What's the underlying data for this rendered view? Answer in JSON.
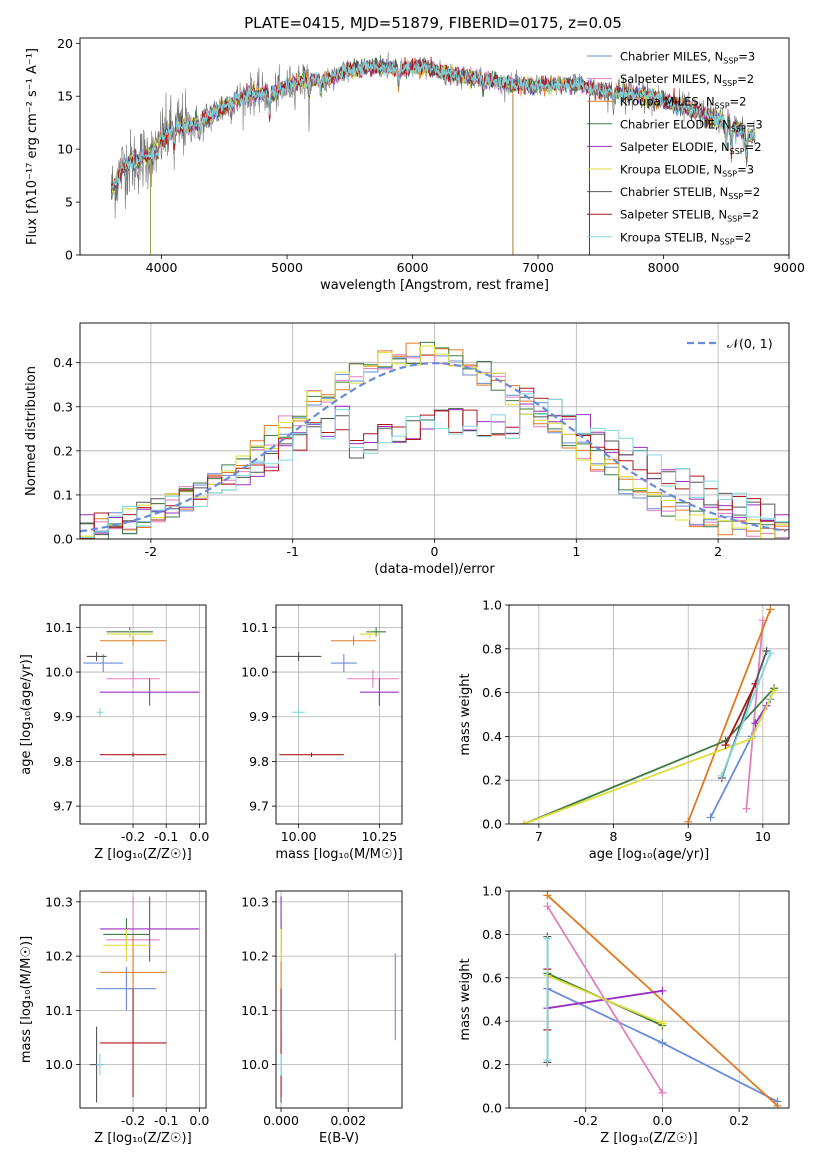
{
  "figure_title": "PLATE=0415, MJD=51879, FIBERID=0175, z=0.05",
  "colors": {
    "Chabrier MILES": "#6a8bd9",
    "Salpeter MILES": "#e27fbf",
    "Kroupa MILES": "#e07a22",
    "Chabrier ELODIE": "#3f7a42",
    "Salpeter ELODIE": "#9b2fc4",
    "Kroupa ELODIE": "#dede3a",
    "Chabrier STELIB": "#555555",
    "Salpeter STELIB": "#b01818",
    "Kroupa STELIB": "#7fd7de"
  },
  "chart_data": [
    {
      "id": "spectrum",
      "type": "line",
      "title": "PLATE=0415, MJD=51879, FIBERID=0175, z=0.05",
      "xlabel": "wavelength [Angstrom, rest frame]",
      "ylabel": "Flux [fλ10⁻¹⁷ erg cm⁻² s⁻¹ A⁻¹]",
      "xlim": [
        3350,
        9000
      ],
      "ylim": [
        0,
        20.5
      ],
      "xticks": [
        4000,
        5000,
        6000,
        7000,
        8000,
        9000
      ],
      "yticks": [
        0,
        5,
        10,
        15,
        20
      ],
      "legend": "top-right",
      "legend_entries": [
        {
          "label": "Chabrier MILES, N",
          "sub": "SSP",
          "tail": "=3",
          "color": "#6a8bd9"
        },
        {
          "label": "Salpeter MILES, N",
          "sub": "SSP",
          "tail": "=2",
          "color": "#e27fbf"
        },
        {
          "label": "Kroupa MILES, N",
          "sub": "SSP",
          "tail": "=2",
          "color": "#e07a22"
        },
        {
          "label": "Chabrier ELODIE, N",
          "sub": "SSP",
          "tail": "=3",
          "color": "#3f7a42"
        },
        {
          "label": "Salpeter ELODIE, N",
          "sub": "SSP",
          "tail": "=2",
          "color": "#9b2fc4"
        },
        {
          "label": "Kroupa ELODIE, N",
          "sub": "SSP",
          "tail": "=3",
          "color": "#dede3a"
        },
        {
          "label": "Chabrier STELIB, N",
          "sub": "SSP",
          "tail": "=2",
          "color": "#555555"
        },
        {
          "label": "Salpeter STELIB, N",
          "sub": "SSP",
          "tail": "=2",
          "color": "#b01818"
        },
        {
          "label": "Kroupa STELIB, N",
          "sub": "SSP",
          "tail": "=2",
          "color": "#7fd7de"
        }
      ],
      "continuum": [
        [
          3600,
          6.0
        ],
        [
          3700,
          8.5
        ],
        [
          3800,
          8.8
        ],
        [
          3900,
          9.5
        ],
        [
          4000,
          11.0
        ],
        [
          4100,
          12.0
        ],
        [
          4300,
          12.5
        ],
        [
          4500,
          14.0
        ],
        [
          4700,
          15.2
        ],
        [
          4900,
          15.3
        ],
        [
          5100,
          16.5
        ],
        [
          5300,
          16.5
        ],
        [
          5500,
          17.5
        ],
        [
          5700,
          17.8
        ],
        [
          5900,
          17.6
        ],
        [
          6100,
          17.8
        ],
        [
          6300,
          17.0
        ],
        [
          6500,
          16.8
        ],
        [
          6700,
          16.3
        ],
        [
          6900,
          16.0
        ],
        [
          7100,
          16.0
        ],
        [
          7300,
          16.2
        ],
        [
          7500,
          15.5
        ],
        [
          7700,
          15.3
        ],
        [
          7900,
          15.0
        ],
        [
          8100,
          14.2
        ],
        [
          8300,
          13.4
        ],
        [
          8500,
          12.6
        ],
        [
          8700,
          11.2
        ]
      ],
      "absorption_dips": [
        [
          3934,
          1.5
        ],
        [
          3969,
          1.5
        ],
        [
          4102,
          2.0
        ],
        [
          4305,
          1.5
        ],
        [
          4861,
          2.5
        ],
        [
          5175,
          1.8
        ],
        [
          5270,
          1.0
        ],
        [
          5890,
          2.0
        ],
        [
          6563,
          1.2
        ],
        [
          7600,
          1.5
        ],
        [
          8498,
          3.0
        ],
        [
          8542,
          3.0
        ],
        [
          8662,
          3.0
        ]
      ]
    },
    {
      "id": "residuals",
      "type": "step",
      "xlabel": "(data-model)/error",
      "ylabel": "Normed distribution",
      "xlim": [
        -2.5,
        2.5
      ],
      "ylim": [
        0,
        0.49
      ],
      "xticks": [
        -2,
        -1,
        0,
        1,
        2
      ],
      "yticks": [
        0.0,
        0.1,
        0.2,
        0.3,
        0.4
      ],
      "legend": "top-right",
      "legend_entries": [
        {
          "label": "𝒩(0, 1)",
          "color": "#6a8bd9",
          "style": "dashed"
        }
      ],
      "gaussian": {
        "mu": 0,
        "sigma": 1
      },
      "bin_width": 0.1
    },
    {
      "id": "age-vs-Z",
      "type": "errorbar",
      "xlabel": "Z [log₁₀(Z/Z☉)]",
      "ylabel": "age  [log₁₀(age/yr)]",
      "xlim": [
        -0.36,
        0.02
      ],
      "ylim": [
        9.66,
        10.15
      ],
      "xticks": [
        -0.2,
        -0.1,
        0.0
      ],
      "yticks": [
        9.7,
        9.8,
        9.9,
        10.0,
        10.1
      ],
      "points": [
        {
          "color": "#6a8bd9",
          "x": -0.29,
          "xerr": 0.06,
          "y": 10.02,
          "yerr": 0.02
        },
        {
          "color": "#e27fbf",
          "x": -0.2,
          "xerr": 0.08,
          "y": 9.985,
          "yerr": 0.02
        },
        {
          "color": "#e07a22",
          "x": -0.2,
          "xerr": 0.1,
          "y": 10.07,
          "yerr": 0.01
        },
        {
          "color": "#3f7a42",
          "x": -0.21,
          "xerr": 0.07,
          "y": 10.09,
          "yerr": 0.01
        },
        {
          "color": "#9b2fc4",
          "x": -0.15,
          "xerr": 0.15,
          "y": 9.955,
          "yerr": 0.03
        },
        {
          "color": "#dede3a",
          "x": -0.21,
          "xerr": 0.07,
          "y": 10.085,
          "yerr": 0.01
        },
        {
          "color": "#555555",
          "x": -0.31,
          "xerr": 0.03,
          "y": 10.035,
          "yerr": 0.01
        },
        {
          "color": "#b01818",
          "x": -0.2,
          "xerr": 0.1,
          "y": 9.815,
          "yerr": 0.005
        },
        {
          "color": "#7fd7de",
          "x": -0.3,
          "xerr": 0.01,
          "y": 9.91,
          "yerr": 0.01
        }
      ]
    },
    {
      "id": "age-vs-mass",
      "type": "errorbar",
      "xlabel": "mass [log₁₀(M/M☉)]",
      "ylabel": "",
      "xlim": [
        9.93,
        10.32
      ],
      "ylim": [
        9.66,
        10.15
      ],
      "xticks": [
        10.0,
        10.25
      ],
      "yticks": [
        9.7,
        9.8,
        9.9,
        10.0,
        10.1
      ],
      "points": [
        {
          "color": "#6a8bd9",
          "x": 10.14,
          "xerr": 0.04,
          "y": 10.02,
          "yerr": 0.02
        },
        {
          "color": "#e27fbf",
          "x": 10.23,
          "xerr": 0.08,
          "y": 9.985,
          "yerr": 0.02
        },
        {
          "color": "#e07a22",
          "x": 10.17,
          "xerr": 0.07,
          "y": 10.07,
          "yerr": 0.01
        },
        {
          "color": "#3f7a42",
          "x": 10.24,
          "xerr": 0.03,
          "y": 10.09,
          "yerr": 0.01
        },
        {
          "color": "#9b2fc4",
          "x": 10.25,
          "xerr": 0.06,
          "y": 9.955,
          "yerr": 0.03
        },
        {
          "color": "#dede3a",
          "x": 10.22,
          "xerr": 0.03,
          "y": 10.085,
          "yerr": 0.01
        },
        {
          "color": "#555555",
          "x": 10.0,
          "xerr": 0.07,
          "y": 10.035,
          "yerr": 0.01
        },
        {
          "color": "#b01818",
          "x": 10.04,
          "xerr": 0.1,
          "y": 9.815,
          "yerr": 0.005
        },
        {
          "color": "#7fd7de",
          "x": 10.0,
          "xerr": 0.02,
          "y": 9.91,
          "yerr": 0.01
        }
      ]
    },
    {
      "id": "mass-weight-vs-age",
      "type": "line",
      "xlabel": "age  [log₁₀(age/yr)]",
      "ylabel": "mass weight",
      "xlim": [
        6.6,
        10.35
      ],
      "ylim": [
        0,
        1.0
      ],
      "xticks": [
        7,
        8,
        9,
        10
      ],
      "yticks": [
        0.0,
        0.2,
        0.4,
        0.6,
        0.8,
        1.0
      ],
      "grid": true,
      "series": [
        {
          "color": "#6a8bd9",
          "x": [
            9.3,
            9.85,
            10.1
          ],
          "y": [
            0.03,
            0.4,
            0.57
          ]
        },
        {
          "color": "#e27fbf",
          "x": [
            9.78,
            10.0
          ],
          "y": [
            0.07,
            0.93
          ]
        },
        {
          "color": "#e07a22",
          "x": [
            9.0,
            10.1
          ],
          "y": [
            0.01,
            0.98
          ]
        },
        {
          "color": "#3f7a42",
          "x": [
            6.8,
            9.5,
            10.15
          ],
          "y": [
            0.0,
            0.38,
            0.62
          ]
        },
        {
          "color": "#9b2fc4",
          "x": [
            9.9,
            10.05
          ],
          "y": [
            0.46,
            0.54
          ]
        },
        {
          "color": "#dede3a",
          "x": [
            6.8,
            9.85,
            10.15
          ],
          "y": [
            0.0,
            0.39,
            0.61
          ]
        },
        {
          "color": "#555555",
          "x": [
            9.45,
            10.05
          ],
          "y": [
            0.21,
            0.79
          ]
        },
        {
          "color": "#b01818",
          "x": [
            9.5,
            9.9
          ],
          "y": [
            0.36,
            0.64
          ]
        },
        {
          "color": "#7fd7de",
          "x": [
            9.45,
            10.1
          ],
          "y": [
            0.22,
            0.78
          ]
        }
      ]
    },
    {
      "id": "mass-vs-Z",
      "type": "errorbar",
      "xlabel": "Z [log₁₀(Z/Z☉)]",
      "ylabel": "mass [log₁₀(M/M☉)]",
      "xlim": [
        -0.36,
        0.02
      ],
      "ylim": [
        9.92,
        10.32
      ],
      "xticks": [
        -0.2,
        -0.1,
        0.0
      ],
      "yticks": [
        10.0,
        10.1,
        10.2,
        10.3
      ],
      "points": [
        {
          "color": "#6a8bd9",
          "x": -0.22,
          "xerr": 0.09,
          "y": 10.14,
          "yerr": 0.04
        },
        {
          "color": "#e27fbf",
          "x": -0.2,
          "xerr": 0.08,
          "y": 10.23,
          "yerr": 0.08
        },
        {
          "color": "#e07a22",
          "x": -0.2,
          "xerr": 0.1,
          "y": 10.17,
          "yerr": 0.07
        },
        {
          "color": "#3f7a42",
          "x": -0.22,
          "xerr": 0.07,
          "y": 10.24,
          "yerr": 0.03
        },
        {
          "color": "#9b2fc4",
          "x": -0.15,
          "xerr": 0.15,
          "y": 10.25,
          "yerr": 0.06
        },
        {
          "color": "#dede3a",
          "x": -0.22,
          "xerr": 0.07,
          "y": 10.22,
          "yerr": 0.03
        },
        {
          "color": "#555555",
          "x": -0.31,
          "xerr": 0.02,
          "y": 10.0,
          "yerr": 0.07
        },
        {
          "color": "#b01818",
          "x": -0.2,
          "xerr": 0.1,
          "y": 10.04,
          "yerr": 0.1
        },
        {
          "color": "#7fd7de",
          "x": -0.3,
          "xerr": 0.01,
          "y": 10.0,
          "yerr": 0.02
        }
      ]
    },
    {
      "id": "mass-vs-ebv",
      "type": "errorbar",
      "xlabel": "E(B-V)",
      "ylabel": "",
      "xlim": [
        -0.00015,
        0.0036
      ],
      "ylim": [
        9.92,
        10.32
      ],
      "xticks": [
        0.0,
        0.002
      ],
      "yticks": [
        10.0,
        10.1,
        10.2,
        10.3
      ],
      "points": [
        {
          "color": "#6a8bd9",
          "x": 0.0034,
          "xerr": 0.0,
          "y": 10.125,
          "yerr": 0.08
        },
        {
          "color": "#e27fbf",
          "x": 0.0,
          "xerr": 0.0,
          "y": 10.23,
          "yerr": 0.08
        },
        {
          "color": "#e07a22",
          "x": 0.0,
          "xerr": 0.0,
          "y": 10.17,
          "yerr": 0.07
        },
        {
          "color": "#3f7a42",
          "x": 0.0,
          "xerr": 0.0,
          "y": 10.24,
          "yerr": 0.03
        },
        {
          "color": "#9b2fc4",
          "x": 0.0,
          "xerr": 0.0,
          "y": 10.25,
          "yerr": 0.06
        },
        {
          "color": "#dede3a",
          "x": 0.0,
          "xerr": 0.0,
          "y": 10.22,
          "yerr": 0.03
        },
        {
          "color": "#555555",
          "x": 0.0,
          "xerr": 0.0,
          "y": 10.0,
          "yerr": 0.07
        },
        {
          "color": "#b01818",
          "x": 0.0,
          "xerr": 0.0,
          "y": 10.04,
          "yerr": 0.1
        },
        {
          "color": "#7fd7de",
          "x": 0.0,
          "xerr": 0.0,
          "y": 10.0,
          "yerr": 0.02
        }
      ]
    },
    {
      "id": "mass-weight-vs-Z",
      "type": "line",
      "xlabel": "Z [log₁₀(Z/Z☉)]",
      "ylabel": "mass weight",
      "xlim": [
        -0.4,
        0.33
      ],
      "ylim": [
        0,
        1.0
      ],
      "xticks": [
        -0.2,
        0.0,
        0.2
      ],
      "yticks": [
        0.0,
        0.2,
        0.4,
        0.6,
        0.8,
        1.0
      ],
      "grid": true,
      "series": [
        {
          "color": "#6a8bd9",
          "x": [
            -0.3,
            0.0,
            0.0,
            0.3
          ],
          "y": [
            0.55,
            0.3,
            0.3,
            0.03
          ]
        },
        {
          "color": "#e27fbf",
          "x": [
            -0.3,
            0.0,
            0.0
          ],
          "y": [
            0.93,
            0.07,
            0.07
          ]
        },
        {
          "color": "#e07a22",
          "x": [
            -0.3,
            0.3
          ],
          "y": [
            0.98,
            0.01
          ]
        },
        {
          "color": "#3f7a42",
          "x": [
            -0.3,
            0.0
          ],
          "y": [
            0.62,
            0.38
          ]
        },
        {
          "color": "#9b2fc4",
          "x": [
            -0.3,
            0.0
          ],
          "y": [
            0.46,
            0.54
          ]
        },
        {
          "color": "#dede3a",
          "x": [
            -0.3,
            0.0
          ],
          "y": [
            0.61,
            0.39
          ]
        },
        {
          "color": "#555555",
          "x": [
            -0.3,
            -0.3
          ],
          "y": [
            0.79,
            0.21
          ]
        },
        {
          "color": "#b01818",
          "x": [
            -0.3,
            -0.3
          ],
          "y": [
            0.64,
            0.36
          ]
        },
        {
          "color": "#7fd7de",
          "x": [
            -0.3,
            -0.3
          ],
          "y": [
            0.78,
            0.22
          ]
        }
      ]
    }
  ]
}
